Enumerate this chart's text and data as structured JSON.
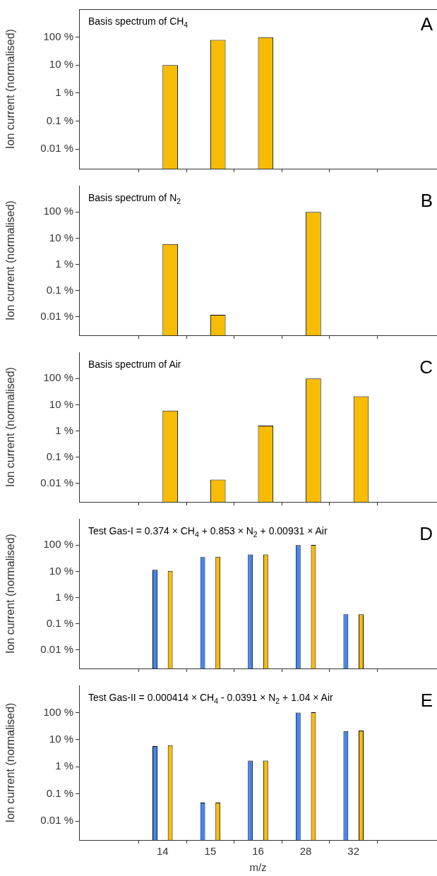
{
  "chart_data": [
    {
      "type": "bar",
      "title": "Basis spectrum of CH$_{4}$",
      "annotations": [
        "A"
      ],
      "ylabel": "Ion current (normalised)",
      "categories": [
        "14",
        "15",
        "16",
        "28",
        "32"
      ],
      "series": [
        {
          "color": "#f8bc05",
          "values": [
            10,
            80,
            100,
            null,
            null
          ]
        }
      ],
      "ylim": [
        0.002,
        1000
      ],
      "yticks": [
        {
          "value": 0.01,
          "label": "0.01 %"
        },
        {
          "value": 0.1,
          "label": "0.1 %"
        },
        {
          "value": 1,
          "label": "1 %"
        },
        {
          "value": 10,
          "label": "10 %"
        },
        {
          "value": 100,
          "label": "100 %"
        }
      ],
      "log": true,
      "legend": false,
      "tick_labels": "y"
    },
    {
      "type": "bar",
      "title": "Basis spectrum of N$_{2}$",
      "annotations": [
        "B"
      ],
      "ylabel": "Ion current (normalised)",
      "categories": [
        "14",
        "15",
        "16",
        "28",
        "32"
      ],
      "series": [
        {
          "color": "#f8bc05",
          "values": [
            6,
            0.012,
            null,
            100,
            null
          ]
        }
      ],
      "ylim": [
        0.002,
        1000
      ],
      "yticks": [
        {
          "value": 0.01,
          "label": "0.01 %"
        },
        {
          "value": 0.1,
          "label": "0.1 %"
        },
        {
          "value": 1,
          "label": "1 %"
        },
        {
          "value": 10,
          "label": "10 %"
        },
        {
          "value": 100,
          "label": "100 %"
        }
      ],
      "log": true,
      "legend": false,
      "tick_labels": "y"
    },
    {
      "type": "bar",
      "title": "Basis spectrum of Air",
      "annotations": [
        "C"
      ],
      "ylabel": "Ion current (normalised)",
      "categories": [
        "14",
        "15",
        "16",
        "28",
        "32"
      ],
      "series": [
        {
          "color": "#f8bc05",
          "values": [
            6,
            0.014,
            1.6,
            100,
            21
          ]
        }
      ],
      "ylim": [
        0.002,
        1000
      ],
      "yticks": [
        {
          "value": 0.01,
          "label": "0.01 %"
        },
        {
          "value": 0.1,
          "label": "0.1 %"
        },
        {
          "value": 1,
          "label": "1 %"
        },
        {
          "value": 10,
          "label": "10 %"
        },
        {
          "value": 100,
          "label": "100 %"
        }
      ],
      "log": true,
      "legend": false,
      "tick_labels": "y"
    },
    {
      "type": "bar",
      "title": "Test Gas-I = 0.374 × CH$_{4}$ + 0.853 × N$_{2}$ + 0.00931 × Air",
      "annotations": [
        "D"
      ],
      "ylabel": "Ion current (normalised)",
      "categories": [
        "14",
        "15",
        "16",
        "28",
        "32"
      ],
      "series": [
        {
          "color": "#4285f4",
          "values": [
            11.4,
            35,
            44,
            100,
            0.23
          ]
        },
        {
          "color": "#f8bc05",
          "values": [
            10.4,
            36,
            44,
            102,
            0.23
          ]
        }
      ],
      "ylim": [
        0.002,
        1000
      ],
      "yticks": [
        {
          "value": 0.01,
          "label": "0.01 %"
        },
        {
          "value": 0.1,
          "label": "0.1 %"
        },
        {
          "value": 1,
          "label": "1 %"
        },
        {
          "value": 10,
          "label": "10 %"
        },
        {
          "value": 100,
          "label": "100 %"
        }
      ],
      "log": true,
      "legend": false,
      "tick_labels": "y"
    },
    {
      "type": "bar",
      "title": "Test Gas-II = 0.000414 × CH$_{4}$ - 0.0391 × N$_{2}$ + 1.04 × Air",
      "annotations": [
        "E"
      ],
      "ylabel": "Ion current (normalised)",
      "xlabel": "m/z",
      "categories": [
        "14",
        "15",
        "16",
        "28",
        "32"
      ],
      "series": [
        {
          "color": "#4285f4",
          "values": [
            5.8,
            0.048,
            1.7,
            100,
            20.7
          ]
        },
        {
          "color": "#f8bc05",
          "values": [
            6.2,
            0.048,
            1.7,
            102,
            21.5
          ]
        }
      ],
      "ylim": [
        0.002,
        1000
      ],
      "yticks": [
        {
          "value": 0.01,
          "label": "0.01 %"
        },
        {
          "value": 0.1,
          "label": "0.1 %"
        },
        {
          "value": 1,
          "label": "1 %"
        },
        {
          "value": 10,
          "label": "10 %"
        },
        {
          "value": 100,
          "label": "100 %"
        }
      ],
      "log": true,
      "legend": false
    }
  ]
}
